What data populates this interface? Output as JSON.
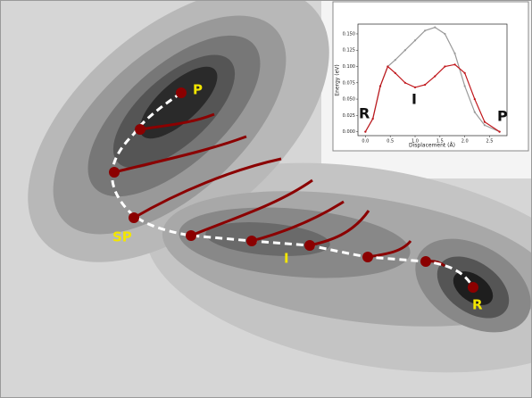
{
  "labels": {
    "P": "P",
    "SP": "SP",
    "I": "I",
    "R": "R"
  },
  "inset_chart": {
    "type": "line",
    "xlabel": "Displacement (Å)",
    "ylabel": "Energy (eV)",
    "annotations": [
      "R",
      "I",
      "P"
    ],
    "xlim": [
      -0.15,
      2.85
    ],
    "ylim": [
      -0.006,
      0.165
    ],
    "xticks": [
      {
        "value": 0,
        "label": "0.0"
      },
      0.5,
      {
        "value": 1,
        "label": "1.0"
      },
      1.5,
      {
        "value": 2,
        "label": "2.0"
      },
      2.5
    ],
    "yticks": [
      {
        "value": 0,
        "label": "0.000"
      },
      {
        "value": 0.025,
        "label": "0.025"
      },
      {
        "value": 0.05,
        "label": "0.050"
      },
      {
        "value": 0.075,
        "label": "0.075"
      },
      {
        "value": 0.1,
        "label": "0.100"
      },
      {
        "value": 0.125,
        "label": "0.125"
      },
      {
        "value": 0.15,
        "label": "0.150"
      }
    ],
    "x": [
      0,
      0.15,
      0.3,
      0.45,
      0.6,
      0.8,
      1.0,
      1.2,
      1.4,
      1.6,
      1.8,
      2.0,
      2.2,
      2.4,
      2.7
    ],
    "series": [
      {
        "color": "#9a9a9a",
        "values": [
          0,
          0.02,
          0.07,
          0.1,
          0.11,
          0.125,
          0.14,
          0.155,
          0.16,
          0.15,
          0.12,
          0.07,
          0.03,
          0.01,
          0
        ]
      },
      {
        "color": "#c0161b",
        "values": [
          0,
          0.02,
          0.07,
          0.1,
          0.09,
          0.075,
          0.068,
          0.072,
          0.085,
          0.1,
          0.103,
          0.09,
          0.05,
          0.015,
          0
        ]
      }
    ]
  }
}
